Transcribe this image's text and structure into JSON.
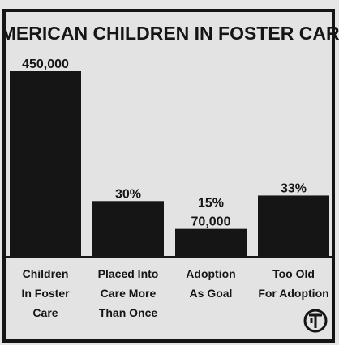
{
  "chart_data": {
    "type": "bar",
    "title": "AMERICAN CHILDREN IN FOSTER CARE",
    "categories": [
      "Children In Foster Care",
      "Placed Into Care More Than Once",
      "Adoption As Goal",
      "Too Old For Adoption"
    ],
    "category_lines": [
      [
        "Children",
        "In Foster",
        "Care"
      ],
      [
        "Placed Into",
        "Care More",
        "Than Once"
      ],
      [
        "Adoption",
        "As Goal"
      ],
      [
        "Too Old",
        "For Adoption"
      ]
    ],
    "values": [
      450000,
      135000,
      67500,
      148500
    ],
    "data_labels": [
      [
        "450,000"
      ],
      [
        "30%"
      ],
      [
        "15%",
        "70,000"
      ],
      [
        "33%"
      ]
    ],
    "xlabel": "",
    "ylabel": "",
    "ylim": [
      0,
      450000
    ],
    "grid": false,
    "legend": "none",
    "colors": {
      "bar": "#151515",
      "text": "#151515",
      "background": "#e3e3e3"
    },
    "logo": "KRT-logo-icon"
  }
}
